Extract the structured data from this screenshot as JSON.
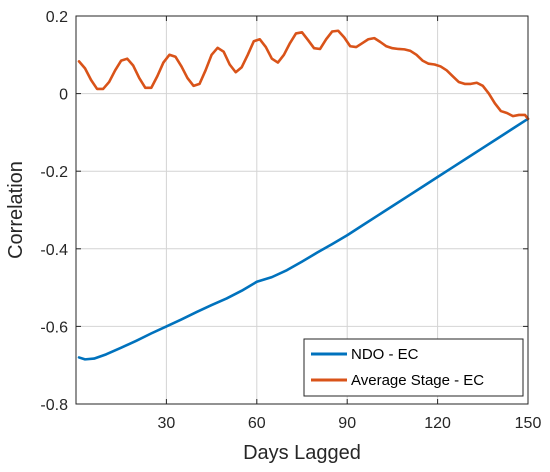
{
  "chart_data": {
    "type": "line",
    "title": "",
    "xlabel": "Days Lagged",
    "ylabel": "Correlation",
    "xlim": [
      0,
      150
    ],
    "ylim": [
      -0.8,
      0.2
    ],
    "xticks": [
      30,
      60,
      90,
      120,
      150
    ],
    "xtick_labels": [
      "30",
      "60",
      "90",
      "120",
      "150"
    ],
    "yticks": [
      0.2,
      0,
      -0.2,
      -0.4,
      -0.6,
      -0.8
    ],
    "ytick_labels": [
      "0.2",
      "0",
      "-0.2",
      "-0.4",
      "-0.6",
      "-0.8"
    ],
    "grid": true,
    "legend_position": "bottom-right",
    "series": [
      {
        "name": "NDO - EC",
        "color": "#0072BD",
        "x": [
          1,
          3,
          6,
          10,
          15,
          20,
          25,
          30,
          35,
          40,
          45,
          50,
          55,
          60,
          65,
          70,
          75,
          80,
          85,
          90,
          95,
          100,
          105,
          110,
          115,
          120,
          125,
          130,
          135,
          140,
          145,
          150
        ],
        "y": [
          -0.68,
          -0.685,
          -0.683,
          -0.672,
          -0.655,
          -0.637,
          -0.618,
          -0.6,
          -0.582,
          -0.563,
          -0.545,
          -0.528,
          -0.508,
          -0.485,
          -0.473,
          -0.455,
          -0.433,
          -0.41,
          -0.388,
          -0.365,
          -0.34,
          -0.315,
          -0.29,
          -0.265,
          -0.24,
          -0.215,
          -0.19,
          -0.165,
          -0.14,
          -0.115,
          -0.09,
          -0.065
        ]
      },
      {
        "name": "Average Stage - EC",
        "color": "#D95319",
        "x": [
          1,
          3,
          5,
          7,
          9,
          11,
          13,
          15,
          17,
          19,
          21,
          23,
          25,
          27,
          29,
          31,
          33,
          35,
          37,
          39,
          41,
          43,
          45,
          47,
          49,
          51,
          53,
          55,
          57,
          59,
          61,
          63,
          65,
          67,
          69,
          71,
          73,
          75,
          77,
          79,
          81,
          83,
          85,
          87,
          89,
          91,
          93,
          95,
          97,
          99,
          101,
          103,
          105,
          107,
          109,
          111,
          113,
          115,
          117,
          119,
          121,
          123,
          125,
          127,
          129,
          131,
          133,
          135,
          137,
          139,
          141,
          143,
          145,
          147,
          149,
          150
        ],
        "y": [
          0.083,
          0.065,
          0.035,
          0.012,
          0.012,
          0.03,
          0.06,
          0.085,
          0.09,
          0.072,
          0.04,
          0.015,
          0.015,
          0.045,
          0.08,
          0.1,
          0.095,
          0.07,
          0.04,
          0.02,
          0.025,
          0.06,
          0.1,
          0.118,
          0.108,
          0.075,
          0.055,
          0.068,
          0.1,
          0.135,
          0.14,
          0.12,
          0.09,
          0.08,
          0.1,
          0.13,
          0.155,
          0.158,
          0.138,
          0.117,
          0.115,
          0.14,
          0.16,
          0.162,
          0.145,
          0.122,
          0.12,
          0.13,
          0.14,
          0.143,
          0.133,
          0.122,
          0.117,
          0.115,
          0.114,
          0.11,
          0.1,
          0.085,
          0.077,
          0.075,
          0.07,
          0.06,
          0.045,
          0.03,
          0.025,
          0.025,
          0.028,
          0.02,
          0.0,
          -0.025,
          -0.045,
          -0.05,
          -0.058,
          -0.055,
          -0.055,
          -0.065
        ]
      }
    ]
  }
}
